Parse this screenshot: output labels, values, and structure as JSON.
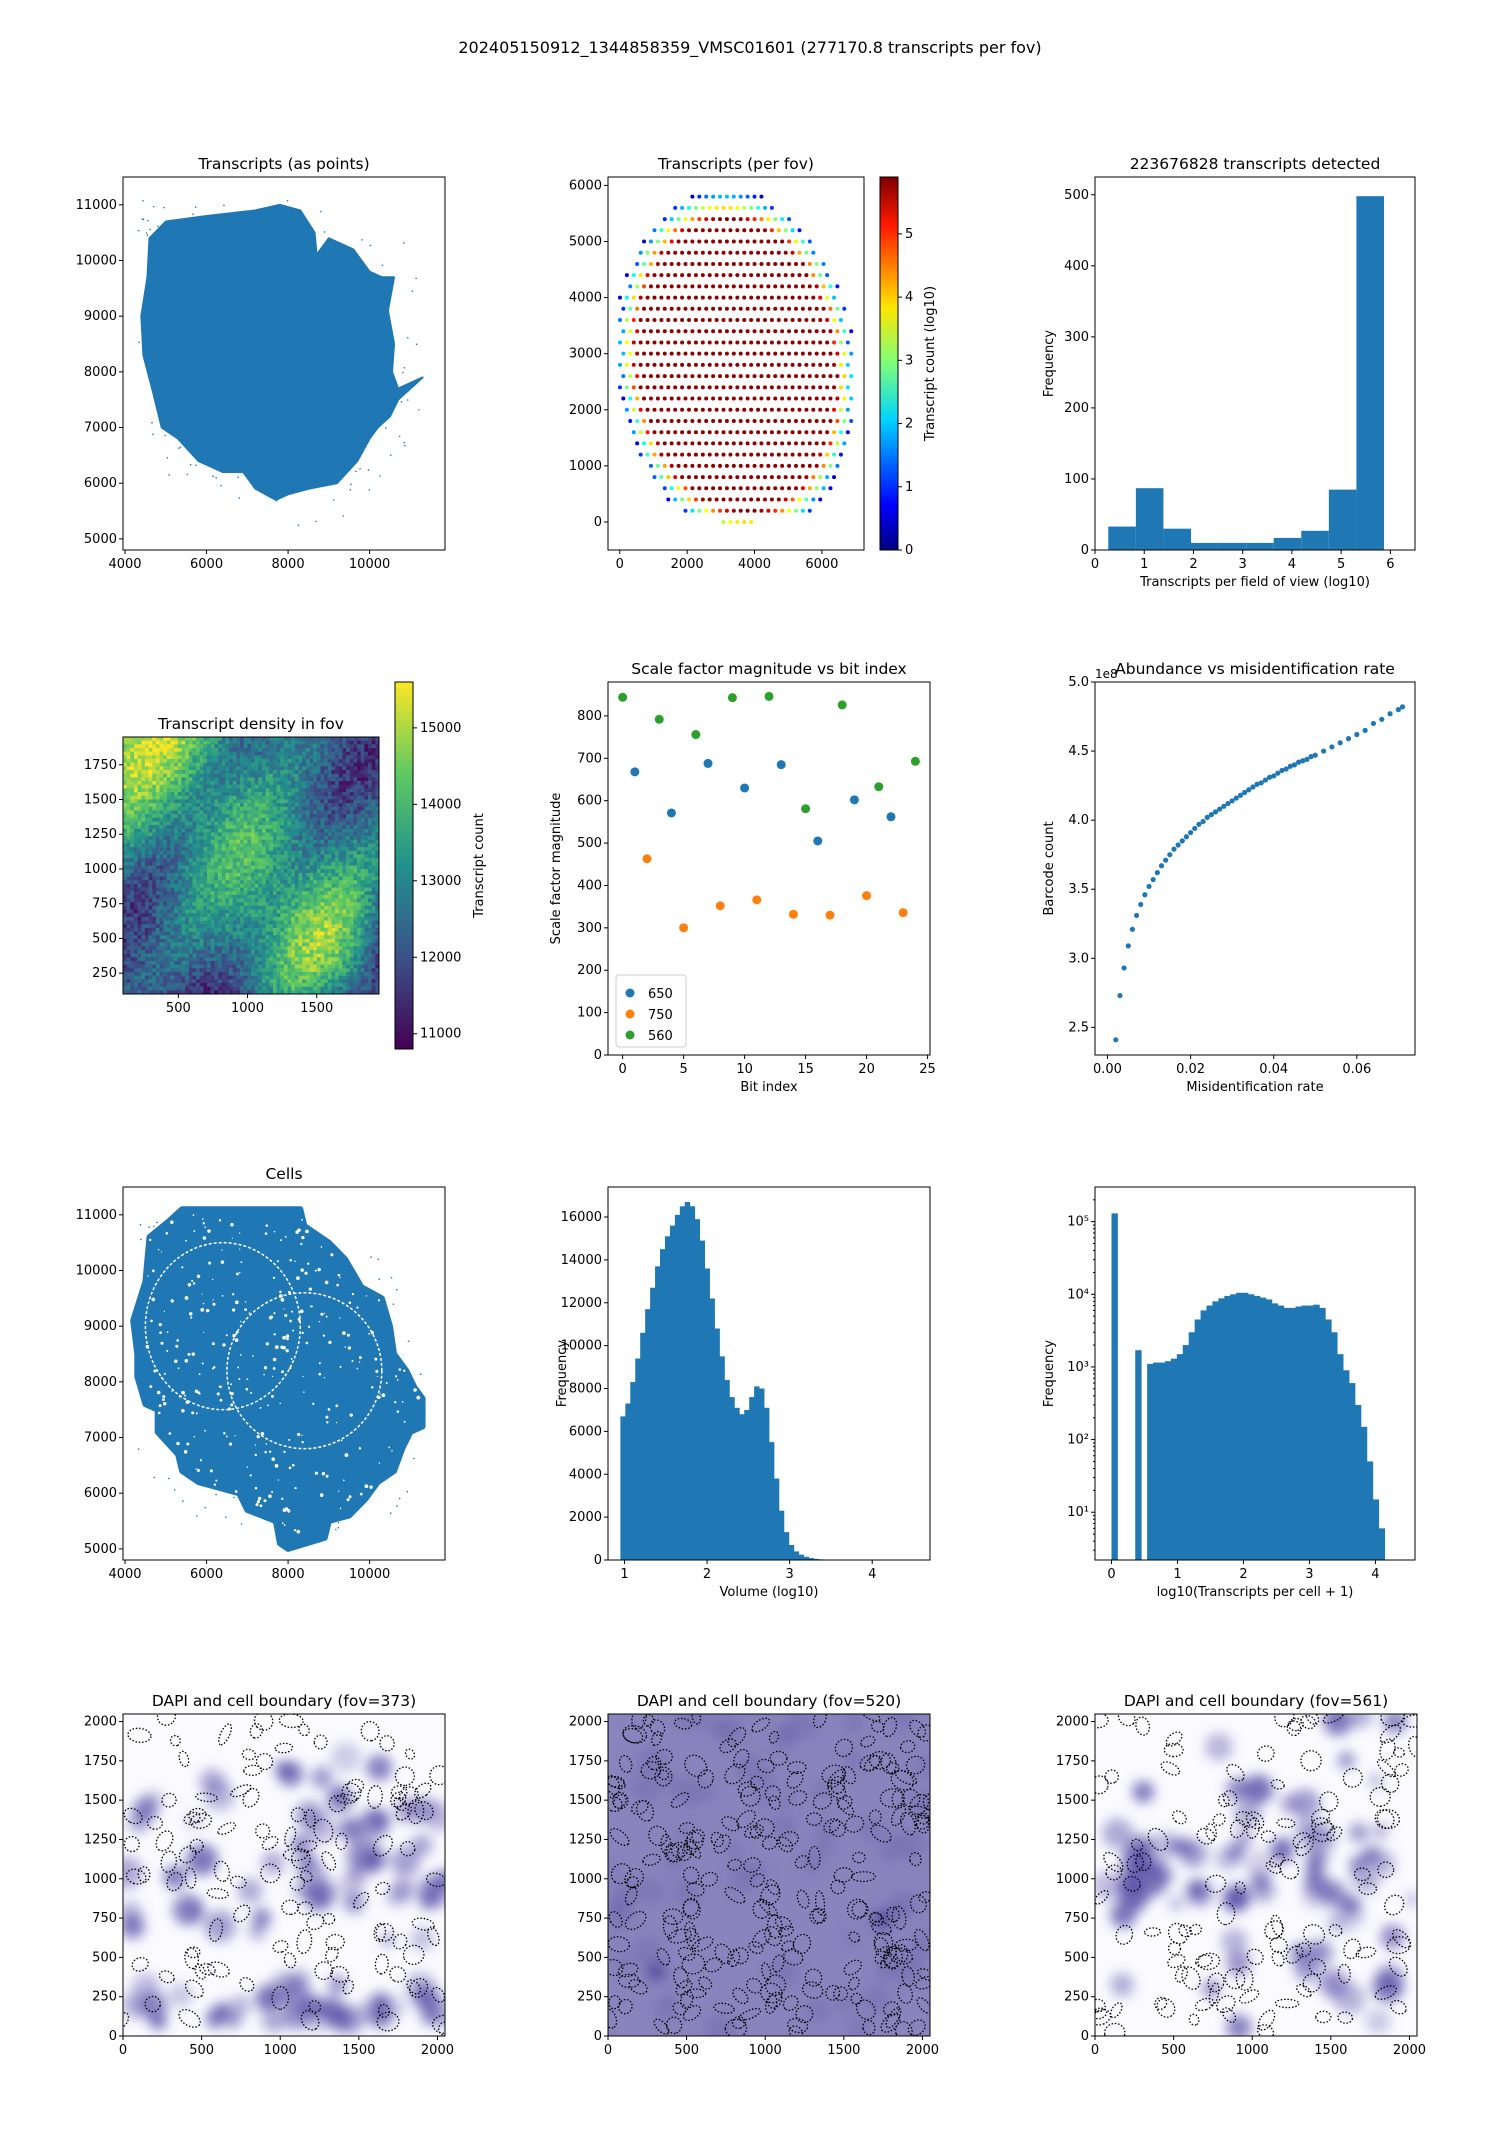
{
  "suptitle": "202405150912_1344858359_VMSC01601 (277170.8 transcripts per fov)",
  "colors": {
    "c0": "#1f77b4",
    "c1": "#ff7f0e",
    "c2": "#2ca02c",
    "dapi": "#5b4fa8"
  },
  "chart_data": [
    {
      "id": "p1",
      "type": "scatter",
      "title": "Transcripts (as points)",
      "xlabel": "",
      "ylabel": "",
      "xlim": [
        3950,
        11850
      ],
      "ylim": [
        4800,
        11500
      ],
      "xticks": [
        4000,
        6000,
        8000,
        10000
      ],
      "yticks": [
        5000,
        6000,
        7000,
        8000,
        9000,
        10000,
        11000
      ],
      "shape_description": "dense tissue section point cloud",
      "outline": [
        [
          4550,
          9700
        ],
        [
          4600,
          10400
        ],
        [
          5000,
          10700
        ],
        [
          6000,
          10800
        ],
        [
          7200,
          10900
        ],
        [
          7800,
          11000
        ],
        [
          8300,
          10900
        ],
        [
          8650,
          10500
        ],
        [
          8700,
          10100
        ],
        [
          9000,
          10400
        ],
        [
          9600,
          10200
        ],
        [
          10000,
          9800
        ],
        [
          10300,
          9700
        ],
        [
          10600,
          9700
        ],
        [
          10450,
          9100
        ],
        [
          10600,
          8500
        ],
        [
          10550,
          8000
        ],
        [
          10700,
          7700
        ],
        [
          11000,
          7800
        ],
        [
          11300,
          7900
        ],
        [
          10700,
          7500
        ],
        [
          10500,
          7200
        ],
        [
          10200,
          7000
        ],
        [
          10000,
          6800
        ],
        [
          9700,
          6400
        ],
        [
          9200,
          6000
        ],
        [
          8500,
          5900
        ],
        [
          8000,
          5800
        ],
        [
          7700,
          5700
        ],
        [
          7200,
          5900
        ],
        [
          6900,
          6200
        ],
        [
          6400,
          6200
        ],
        [
          5800,
          6400
        ],
        [
          5300,
          6800
        ],
        [
          4900,
          7000
        ],
        [
          4700,
          7600
        ],
        [
          4450,
          8300
        ],
        [
          4400,
          9000
        ]
      ]
    },
    {
      "id": "p2",
      "type": "scatter",
      "title": "Transcripts (per fov)",
      "xlabel": "",
      "ylabel": "",
      "xlim": [
        -350,
        7250
      ],
      "ylim": [
        -500,
        6150
      ],
      "xticks": [
        0,
        2000,
        4000,
        6000
      ],
      "yticks": [
        0,
        1000,
        2000,
        3000,
        4000,
        5000,
        6000
      ],
      "colorbar_label": "Transcript count (log10)",
      "colorbar_ticks": [
        0,
        1,
        2,
        3,
        4,
        5
      ],
      "colorbar_range": [
        0,
        5.9
      ]
    },
    {
      "id": "p3",
      "type": "bar",
      "title": "223676828 transcripts detected",
      "xlabel": "Transcripts per field of view (log10)",
      "ylabel": "Frequency",
      "xlim": [
        0,
        6.5
      ],
      "ylim": [
        0,
        525
      ],
      "xticks": [
        0,
        1,
        2,
        3,
        4,
        5,
        6
      ],
      "yticks": [
        0,
        100,
        200,
        300,
        400,
        500
      ],
      "bin_edges": [
        0.27,
        0.83,
        1.39,
        1.95,
        2.51,
        3.07,
        3.63,
        4.19,
        4.75,
        5.31,
        5.87
      ],
      "values": [
        33,
        87,
        30,
        10,
        10,
        10,
        17,
        27,
        85,
        498
      ]
    },
    {
      "id": "p4",
      "type": "heatmap",
      "title": "Transcript density in fov",
      "xlabel": "",
      "ylabel": "",
      "xlim": [
        100,
        1950
      ],
      "ylim": [
        100,
        1950
      ],
      "xticks": [
        500,
        1000,
        1500
      ],
      "yticks": [
        250,
        500,
        750,
        1000,
        1250,
        1500,
        1750
      ],
      "colorbar_label": "Transcript count",
      "colorbar_ticks": [
        11000,
        12000,
        13000,
        14000,
        15000
      ],
      "colorbar_range": [
        10800,
        15600
      ]
    },
    {
      "id": "p5",
      "type": "scatter",
      "title": "Scale factor magnitude vs bit index",
      "xlabel": "Bit index",
      "ylabel": "Scale factor magnitude",
      "xlim": [
        -1.2,
        25.2
      ],
      "ylim": [
        0,
        880
      ],
      "xticks": [
        0,
        5,
        10,
        15,
        20,
        25
      ],
      "yticks": [
        0,
        100,
        200,
        300,
        400,
        500,
        600,
        700,
        800
      ],
      "legend_position": "lower-left",
      "series": [
        {
          "name": "650",
          "x": [
            1,
            4,
            7,
            10,
            13,
            16,
            19,
            22
          ],
          "y": [
            668,
            571,
            688,
            630,
            685,
            505,
            602,
            562
          ]
        },
        {
          "name": "750",
          "x": [
            2,
            5,
            8,
            11,
            14,
            17,
            20,
            23
          ],
          "y": [
            463,
            300,
            352,
            366,
            332,
            330,
            376,
            336
          ]
        },
        {
          "name": "560",
          "x": [
            0,
            3,
            6,
            9,
            12,
            15,
            18,
            21,
            24
          ],
          "y": [
            844,
            792,
            756,
            843,
            846,
            581,
            826,
            633,
            693
          ]
        }
      ]
    },
    {
      "id": "p6",
      "type": "scatter",
      "title": "Abundance vs misidentification rate",
      "xlabel": "Misidentification rate",
      "ylabel": "Barcode count",
      "xlim": [
        -0.003,
        0.074
      ],
      "ylim": [
        2.3,
        5.0
      ],
      "xticks": [
        0.0,
        0.02,
        0.04,
        0.06
      ],
      "yticks": [
        2.5,
        3.0,
        3.5,
        4.0,
        4.5,
        5.0
      ],
      "offset_text": "1e8",
      "x": [
        0.002,
        0.003,
        0.004,
        0.005,
        0.006,
        0.007,
        0.008,
        0.009,
        0.01,
        0.011,
        0.012,
        0.013,
        0.014,
        0.015,
        0.016,
        0.017,
        0.018,
        0.019,
        0.02,
        0.021,
        0.022,
        0.023,
        0.024,
        0.025,
        0.026,
        0.027,
        0.028,
        0.029,
        0.03,
        0.031,
        0.032,
        0.033,
        0.034,
        0.035,
        0.036,
        0.037,
        0.038,
        0.039,
        0.04,
        0.041,
        0.042,
        0.043,
        0.044,
        0.045,
        0.046,
        0.047,
        0.048,
        0.049,
        0.05,
        0.052,
        0.054,
        0.056,
        0.058,
        0.06,
        0.062,
        0.064,
        0.066,
        0.068,
        0.07,
        0.071
      ],
      "y": [
        2.41,
        2.73,
        2.93,
        3.09,
        3.21,
        3.31,
        3.39,
        3.46,
        3.52,
        3.57,
        3.62,
        3.67,
        3.71,
        3.75,
        3.79,
        3.82,
        3.85,
        3.88,
        3.91,
        3.94,
        3.97,
        3.99,
        4.02,
        4.04,
        4.06,
        4.08,
        4.1,
        4.12,
        4.14,
        4.16,
        4.18,
        4.2,
        4.22,
        4.24,
        4.26,
        4.27,
        4.29,
        4.31,
        4.32,
        4.34,
        4.36,
        4.37,
        4.39,
        4.4,
        4.42,
        4.43,
        4.44,
        4.46,
        4.47,
        4.5,
        4.53,
        4.56,
        4.59,
        4.62,
        4.65,
        4.7,
        4.73,
        4.77,
        4.8,
        4.82
      ]
    },
    {
      "id": "p7",
      "type": "scatter",
      "title": "Cells",
      "xlabel": "",
      "ylabel": "",
      "xlim": [
        3950,
        11850
      ],
      "ylim": [
        4800,
        11500
      ],
      "xticks": [
        4000,
        6000,
        8000,
        10000
      ],
      "yticks": [
        5000,
        6000,
        7000,
        8000,
        9000,
        10000,
        11000
      ],
      "outline": [
        [
          4600,
          10600
        ],
        [
          5100,
          10900
        ],
        [
          5400,
          11100
        ],
        [
          6300,
          11100
        ],
        [
          7200,
          11100
        ],
        [
          8300,
          11100
        ],
        [
          8400,
          10800
        ],
        [
          9000,
          10500
        ],
        [
          9400,
          10200
        ],
        [
          9800,
          9700
        ],
        [
          10300,
          9500
        ],
        [
          10500,
          9000
        ],
        [
          10600,
          8500
        ],
        [
          10900,
          8200
        ],
        [
          11100,
          7900
        ],
        [
          11300,
          7700
        ],
        [
          11300,
          7200
        ],
        [
          11000,
          7100
        ],
        [
          10800,
          6800
        ],
        [
          10600,
          6400
        ],
        [
          10200,
          6200
        ],
        [
          9900,
          5900
        ],
        [
          9500,
          5600
        ],
        [
          9000,
          5500
        ],
        [
          8900,
          5200
        ],
        [
          8000,
          5000
        ],
        [
          7800,
          5100
        ],
        [
          7700,
          5500
        ],
        [
          7000,
          5700
        ],
        [
          6800,
          6000
        ],
        [
          5800,
          6200
        ],
        [
          5400,
          6400
        ],
        [
          5300,
          6700
        ],
        [
          4800,
          7100
        ],
        [
          4800,
          7500
        ],
        [
          4500,
          7600
        ],
        [
          4300,
          8100
        ],
        [
          4300,
          8500
        ],
        [
          4200,
          9100
        ],
        [
          4500,
          9800
        ]
      ]
    },
    {
      "id": "p8",
      "type": "bar",
      "title": "",
      "xlabel": "Volume (log10)",
      "ylabel": "Frequency",
      "xlim": [
        0.8,
        4.7
      ],
      "ylim": [
        0,
        17400
      ],
      "xticks": [
        1,
        2,
        3,
        4
      ],
      "yticks": [
        0,
        2000,
        4000,
        6000,
        8000,
        10000,
        12000,
        14000,
        16000
      ],
      "bin_edges_start": 0.95,
      "bin_width": 0.06,
      "values": [
        6700,
        7300,
        8300,
        9400,
        10600,
        11700,
        12700,
        13700,
        14500,
        15100,
        15600,
        16100,
        16500,
        16700,
        16500,
        15900,
        14900,
        13600,
        12200,
        10800,
        9500,
        8400,
        7600,
        7100,
        6800,
        7000,
        7600,
        8100,
        8000,
        7100,
        5500,
        3800,
        2300,
        1300,
        700,
        400,
        250,
        150,
        90,
        50,
        30,
        20,
        10,
        5,
        3
      ]
    },
    {
      "id": "p9",
      "type": "bar",
      "title": "",
      "xlabel": "log10(Transcripts per cell + 1)",
      "ylabel": "Frequency",
      "yscale": "log",
      "xlim": [
        -0.25,
        4.6
      ],
      "ylim": [
        2.2,
        300000
      ],
      "xticks": [
        0,
        1,
        2,
        3,
        4
      ],
      "ytick_labels": [
        "10¹",
        "10²",
        "10³",
        "10⁴",
        "10⁵"
      ],
      "bin_edges_start": 0,
      "bin_width": 0.09,
      "values": [
        130000,
        0,
        0,
        0,
        1700,
        0,
        1100,
        1150,
        1150,
        1200,
        1300,
        1500,
        2000,
        3000,
        4500,
        6000,
        7000,
        8000,
        8800,
        9500,
        10000,
        10500,
        10500,
        10000,
        9500,
        9000,
        8500,
        7500,
        7000,
        6500,
        6500,
        6800,
        7000,
        7000,
        7200,
        6500,
        4500,
        3000,
        1500,
        900,
        600,
        300,
        150,
        50,
        15,
        6
      ],
      "gap_bins": [
        1,
        2,
        3,
        5
      ]
    },
    {
      "id": "p10",
      "type": "heatmap",
      "title": "DAPI and cell boundary (fov=373)",
      "xlabel": "",
      "ylabel": "",
      "xlim": [
        0,
        2048
      ],
      "ylim": [
        0,
        2048
      ],
      "xticks": [
        0,
        500,
        1000,
        1500,
        2000
      ],
      "yticks": [
        0,
        250,
        500,
        750,
        1000,
        1250,
        1500,
        1750,
        2000
      ]
    },
    {
      "id": "p11",
      "type": "heatmap",
      "title": "DAPI and cell boundary (fov=520)",
      "xlabel": "",
      "ylabel": "",
      "xlim": [
        0,
        2048
      ],
      "ylim": [
        0,
        2048
      ],
      "xticks": [
        0,
        500,
        1000,
        1500,
        2000
      ],
      "yticks": [
        0,
        250,
        500,
        750,
        1000,
        1250,
        1500,
        1750,
        2000
      ]
    },
    {
      "id": "p12",
      "type": "heatmap",
      "title": "DAPI and cell boundary (fov=561)",
      "xlabel": "",
      "ylabel": "",
      "xlim": [
        0,
        2048
      ],
      "ylim": [
        0,
        2048
      ],
      "xticks": [
        0,
        500,
        1000,
        1500,
        2000
      ],
      "yticks": [
        0,
        250,
        500,
        750,
        1000,
        1250,
        1500,
        1750,
        2000
      ]
    }
  ]
}
